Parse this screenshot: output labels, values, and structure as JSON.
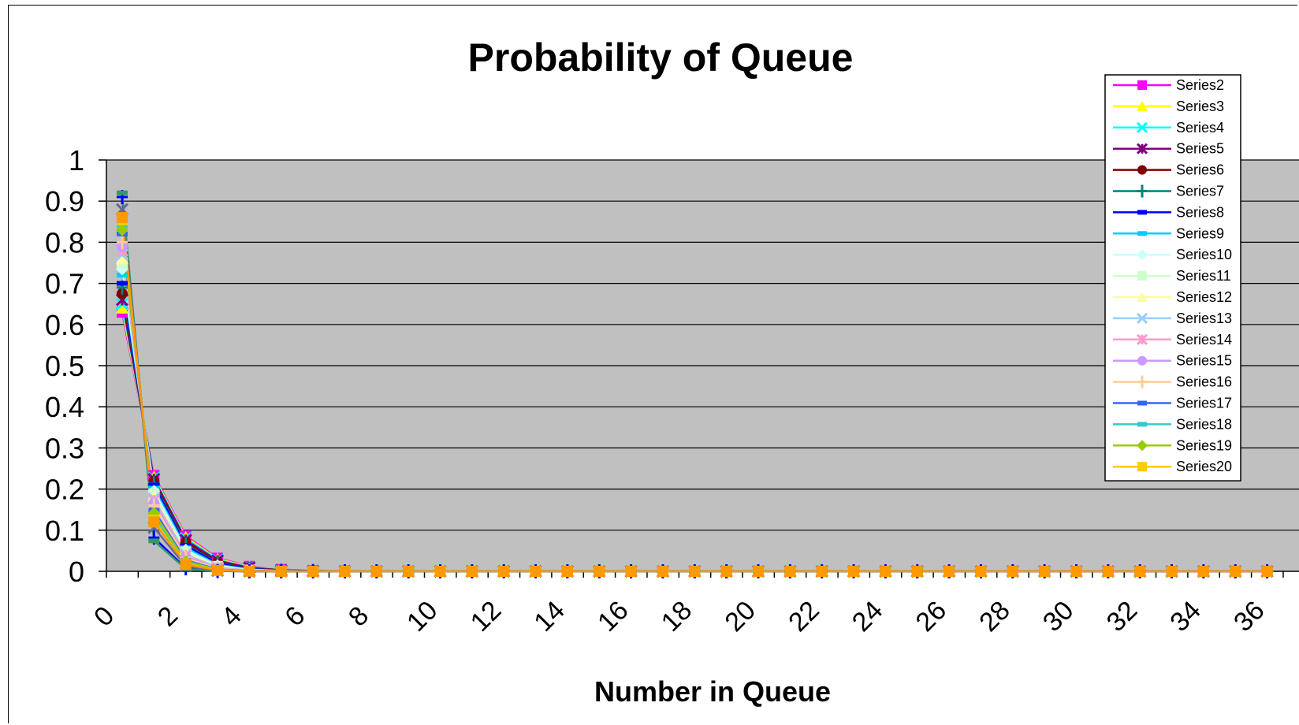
{
  "chart_data": {
    "type": "line",
    "title": "Probability of Queue",
    "xlabel": "Number in Queue",
    "ylabel": "",
    "ylim": [
      0,
      1
    ],
    "yticks": [
      "0",
      "0.1",
      "0.2",
      "0.3",
      "0.4",
      "0.5",
      "0.6",
      "0.7",
      "0.8",
      "0.9",
      "1"
    ],
    "xticks": [
      "0",
      "2",
      "4",
      "6",
      "8",
      "10",
      "12",
      "14",
      "16",
      "18",
      "20",
      "22",
      "24",
      "26",
      "28",
      "30",
      "32",
      "34",
      "36"
    ],
    "x": [
      0,
      1,
      2,
      3,
      4,
      5,
      6,
      7,
      8,
      9,
      10,
      11,
      12,
      13,
      14,
      15,
      16,
      17,
      18,
      19,
      20,
      21,
      22,
      23,
      24,
      25,
      26,
      27,
      28,
      29,
      30,
      31,
      32,
      33,
      34,
      35,
      36
    ],
    "grid": true,
    "plot_background": "#c0c0c0",
    "legend_position": "top-right",
    "series": [
      {
        "name": "Series2",
        "color": "#ff00ff",
        "marker": "square",
        "values": [
          0.63,
          0.233,
          0.086,
          0.032,
          0.012,
          0.0044,
          0.0016,
          0.0006,
          0.0002,
          0.0001,
          0,
          0,
          0,
          0,
          0,
          0,
          0,
          0,
          0,
          0,
          0,
          0,
          0,
          0,
          0,
          0,
          0,
          0,
          0,
          0,
          0,
          0,
          0,
          0,
          0,
          0,
          0
        ]
      },
      {
        "name": "Series3",
        "color": "#ffff00",
        "marker": "triangle",
        "values": [
          0.64,
          0.23,
          0.083,
          0.03,
          0.011,
          0.004,
          0.0014,
          0.0005,
          0.0002,
          0.0001,
          0,
          0,
          0,
          0,
          0,
          0,
          0,
          0,
          0,
          0,
          0,
          0,
          0,
          0,
          0,
          0,
          0,
          0,
          0,
          0,
          0,
          0,
          0,
          0,
          0,
          0,
          0
        ]
      },
      {
        "name": "Series4",
        "color": "#00ffff",
        "marker": "x",
        "values": [
          0.65,
          0.227,
          0.08,
          0.028,
          0.01,
          0.0034,
          0.0012,
          0.0004,
          0.0001,
          0,
          0,
          0,
          0,
          0,
          0,
          0,
          0,
          0,
          0,
          0,
          0,
          0,
          0,
          0,
          0,
          0,
          0,
          0,
          0,
          0,
          0,
          0,
          0,
          0,
          0,
          0,
          0
        ]
      },
      {
        "name": "Series5",
        "color": "#800080",
        "marker": "star",
        "values": [
          0.66,
          0.224,
          0.076,
          0.026,
          0.009,
          0.003,
          0.001,
          0.0003,
          0.0001,
          0,
          0,
          0,
          0,
          0,
          0,
          0,
          0,
          0,
          0,
          0,
          0,
          0,
          0,
          0,
          0,
          0,
          0,
          0,
          0,
          0,
          0,
          0,
          0,
          0,
          0,
          0,
          0
        ]
      },
      {
        "name": "Series6",
        "color": "#800000",
        "marker": "circle",
        "values": [
          0.675,
          0.219,
          0.071,
          0.023,
          0.0075,
          0.0024,
          0.0008,
          0.0003,
          0.0001,
          0,
          0,
          0,
          0,
          0,
          0,
          0,
          0,
          0,
          0,
          0,
          0,
          0,
          0,
          0,
          0,
          0,
          0,
          0,
          0,
          0,
          0,
          0,
          0,
          0,
          0,
          0,
          0
        ]
      },
      {
        "name": "Series7",
        "color": "#008080",
        "marker": "plus",
        "values": [
          0.69,
          0.214,
          0.066,
          0.02,
          0.0063,
          0.002,
          0.0006,
          0.0002,
          0.0001,
          0,
          0,
          0,
          0,
          0,
          0,
          0,
          0,
          0,
          0,
          0,
          0,
          0,
          0,
          0,
          0,
          0,
          0,
          0,
          0,
          0,
          0,
          0,
          0,
          0,
          0,
          0,
          0
        ]
      },
      {
        "name": "Series8",
        "color": "#0000ff",
        "marker": "dash",
        "values": [
          0.7,
          0.21,
          0.063,
          0.019,
          0.0057,
          0.0017,
          0.0005,
          0.0002,
          0,
          0,
          0,
          0,
          0,
          0,
          0,
          0,
          0,
          0,
          0,
          0,
          0,
          0,
          0,
          0,
          0,
          0,
          0,
          0,
          0,
          0,
          0,
          0,
          0,
          0,
          0,
          0,
          0
        ]
      },
      {
        "name": "Series9",
        "color": "#00ccff",
        "marker": "dash",
        "values": [
          0.72,
          0.202,
          0.057,
          0.016,
          0.0045,
          0.0013,
          0.0004,
          0.0001,
          0,
          0,
          0,
          0,
          0,
          0,
          0,
          0,
          0,
          0,
          0,
          0,
          0,
          0,
          0,
          0,
          0,
          0,
          0,
          0,
          0,
          0,
          0,
          0,
          0,
          0,
          0,
          0,
          0
        ]
      },
      {
        "name": "Series10",
        "color": "#ccffff",
        "marker": "diamond",
        "values": [
          0.735,
          0.195,
          0.052,
          0.014,
          0.0037,
          0.001,
          0.0003,
          0.0001,
          0,
          0,
          0,
          0,
          0,
          0,
          0,
          0,
          0,
          0,
          0,
          0,
          0,
          0,
          0,
          0,
          0,
          0,
          0,
          0,
          0,
          0,
          0,
          0,
          0,
          0,
          0,
          0,
          0
        ]
      },
      {
        "name": "Series11",
        "color": "#ccffcc",
        "marker": "square",
        "values": [
          0.75,
          0.188,
          0.047,
          0.012,
          0.0029,
          0.0007,
          0.0002,
          0,
          0,
          0,
          0,
          0,
          0,
          0,
          0,
          0,
          0,
          0,
          0,
          0,
          0,
          0,
          0,
          0,
          0,
          0,
          0,
          0,
          0,
          0,
          0,
          0,
          0,
          0,
          0,
          0,
          0
        ]
      },
      {
        "name": "Series12",
        "color": "#ffff99",
        "marker": "triangle",
        "values": [
          0.76,
          0.182,
          0.044,
          0.011,
          0.0025,
          0.0006,
          0.0001,
          0,
          0,
          0,
          0,
          0,
          0,
          0,
          0,
          0,
          0,
          0,
          0,
          0,
          0,
          0,
          0,
          0,
          0,
          0,
          0,
          0,
          0,
          0,
          0,
          0,
          0,
          0,
          0,
          0,
          0
        ]
      },
      {
        "name": "Series13",
        "color": "#99ccff",
        "marker": "x",
        "values": [
          0.77,
          0.177,
          0.041,
          0.0094,
          0.0022,
          0.0005,
          0.0001,
          0,
          0,
          0,
          0,
          0,
          0,
          0,
          0,
          0,
          0,
          0,
          0,
          0,
          0,
          0,
          0,
          0,
          0,
          0,
          0,
          0,
          0,
          0,
          0,
          0,
          0,
          0,
          0,
          0,
          0
        ]
      },
      {
        "name": "Series14",
        "color": "#ff99cc",
        "marker": "star",
        "values": [
          0.78,
          0.172,
          0.038,
          0.0083,
          0.0018,
          0.0004,
          0.0001,
          0,
          0,
          0,
          0,
          0,
          0,
          0,
          0,
          0,
          0,
          0,
          0,
          0,
          0,
          0,
          0,
          0,
          0,
          0,
          0,
          0,
          0,
          0,
          0,
          0,
          0,
          0,
          0,
          0,
          0
        ]
      },
      {
        "name": "Series15",
        "color": "#cc99ff",
        "marker": "circle",
        "values": [
          0.79,
          0.166,
          0.035,
          0.0073,
          0.0015,
          0.0003,
          0.0001,
          0,
          0,
          0,
          0,
          0,
          0,
          0,
          0,
          0,
          0,
          0,
          0,
          0,
          0,
          0,
          0,
          0,
          0,
          0,
          0,
          0,
          0,
          0,
          0,
          0,
          0,
          0,
          0,
          0,
          0
        ]
      },
      {
        "name": "Series16",
        "color": "#ffcc99",
        "marker": "plus",
        "values": [
          0.8,
          0.16,
          0.032,
          0.0064,
          0.0013,
          0.0003,
          0.0001,
          0,
          0,
          0,
          0,
          0,
          0,
          0,
          0,
          0,
          0,
          0,
          0,
          0,
          0,
          0,
          0,
          0,
          0,
          0,
          0,
          0,
          0,
          0,
          0,
          0,
          0,
          0,
          0,
          0,
          0
        ]
      },
      {
        "name": "Series17",
        "color": "#3366ff",
        "marker": "dash",
        "values": [
          0.82,
          0.148,
          0.027,
          0.0048,
          0.0009,
          0.0002,
          0,
          0,
          0,
          0,
          0,
          0,
          0,
          0,
          0,
          0,
          0,
          0,
          0,
          0,
          0,
          0,
          0,
          0,
          0,
          0,
          0,
          0,
          0,
          0,
          0,
          0,
          0,
          0,
          0,
          0,
          0
        ]
      },
      {
        "name": "Series18",
        "color": "#33cccc",
        "marker": "dash",
        "values": [
          0.84,
          0.134,
          0.021,
          0.0034,
          0.0005,
          0.0001,
          0,
          0,
          0,
          0,
          0,
          0,
          0,
          0,
          0,
          0,
          0,
          0,
          0,
          0,
          0,
          0,
          0,
          0,
          0,
          0,
          0,
          0,
          0,
          0,
          0,
          0,
          0,
          0,
          0,
          0,
          0
        ]
      },
      {
        "name": "Series19",
        "color": "#99cc00",
        "marker": "diamond",
        "values": [
          0.83,
          0.141,
          0.024,
          0.0041,
          0.0007,
          0.0001,
          0,
          0,
          0,
          0,
          0,
          0,
          0,
          0,
          0,
          0,
          0,
          0,
          0,
          0,
          0,
          0,
          0,
          0,
          0,
          0,
          0,
          0,
          0,
          0,
          0,
          0,
          0,
          0,
          0,
          0,
          0
        ]
      },
      {
        "name": "Series20",
        "color": "#ffcc00",
        "marker": "square",
        "values": [
          0.855,
          0.124,
          0.018,
          0.0026,
          0.0004,
          0.0001,
          0,
          0,
          0,
          0,
          0,
          0,
          0,
          0,
          0,
          0,
          0,
          0,
          0,
          0,
          0,
          0,
          0,
          0,
          0,
          0,
          0,
          0,
          0,
          0,
          0,
          0,
          0,
          0,
          0,
          0,
          0
        ]
      },
      {
        "color": "#0000ff",
        "marker": "plus",
        "values": [
          0.91,
          0.082,
          0.0074,
          0.0007,
          0.0001,
          0,
          0,
          0,
          0,
          0,
          0,
          0,
          0,
          0,
          0,
          0,
          0,
          0,
          0,
          0,
          0,
          0,
          0,
          0,
          0,
          0,
          0,
          0,
          0,
          0,
          0,
          0,
          0,
          0,
          0,
          0,
          0
        ]
      },
      {
        "color": "#339966",
        "marker": "dash",
        "values": [
          0.92,
          0.074,
          0.0059,
          0.0005,
          0,
          0,
          0,
          0,
          0,
          0,
          0,
          0,
          0,
          0,
          0,
          0,
          0,
          0,
          0,
          0,
          0,
          0,
          0,
          0,
          0,
          0,
          0,
          0,
          0,
          0,
          0,
          0,
          0,
          0,
          0,
          0,
          0
        ]
      },
      {
        "color": "#666699",
        "marker": "x",
        "values": [
          0.88,
          0.106,
          0.0127,
          0.0015,
          0.0002,
          0,
          0,
          0,
          0,
          0,
          0,
          0,
          0,
          0,
          0,
          0,
          0,
          0,
          0,
          0,
          0,
          0,
          0,
          0,
          0,
          0,
          0,
          0,
          0,
          0,
          0,
          0,
          0,
          0,
          0,
          0,
          0
        ]
      },
      {
        "color": "#ff9900",
        "marker": "square",
        "values": [
          0.86,
          0.12,
          0.0168,
          0.0024,
          0.0003,
          0,
          0,
          0,
          0,
          0,
          0,
          0,
          0,
          0,
          0,
          0,
          0,
          0,
          0,
          0,
          0,
          0,
          0,
          0,
          0,
          0,
          0,
          0,
          0,
          0,
          0,
          0,
          0,
          0,
          0,
          0,
          0
        ]
      }
    ]
  }
}
